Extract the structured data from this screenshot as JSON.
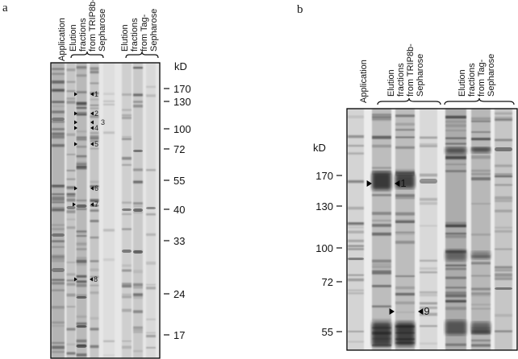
{
  "panels": [
    {
      "letter": "a",
      "lane_labels": {
        "application": "Application",
        "trip8b": [
          "Elution",
          "fractions",
          "from TRIP8b-",
          "Sepharose"
        ],
        "tag": [
          "Elution",
          "fractions",
          "from Tag-",
          "Sepharose"
        ]
      },
      "unit": "kD",
      "markers": [
        "170",
        "130",
        "100",
        "72",
        "55",
        "40",
        "33",
        "24",
        "17"
      ],
      "band_arrows": [
        "1",
        "2",
        "3",
        "4",
        "5",
        "6",
        "7",
        "8"
      ]
    },
    {
      "letter": "b",
      "lane_labels": {
        "application": "Application",
        "trip8b": [
          "Elution",
          "fractions",
          "from TRIP8b-",
          "Sepharose"
        ],
        "tag": [
          "Elution",
          "fractions",
          "from Tag-",
          "Sepharose"
        ]
      },
      "unit": "kD",
      "markers": [
        "170",
        "130",
        "100",
        "72",
        "55"
      ],
      "band_arrows": [
        "1",
        "9"
      ]
    }
  ]
}
